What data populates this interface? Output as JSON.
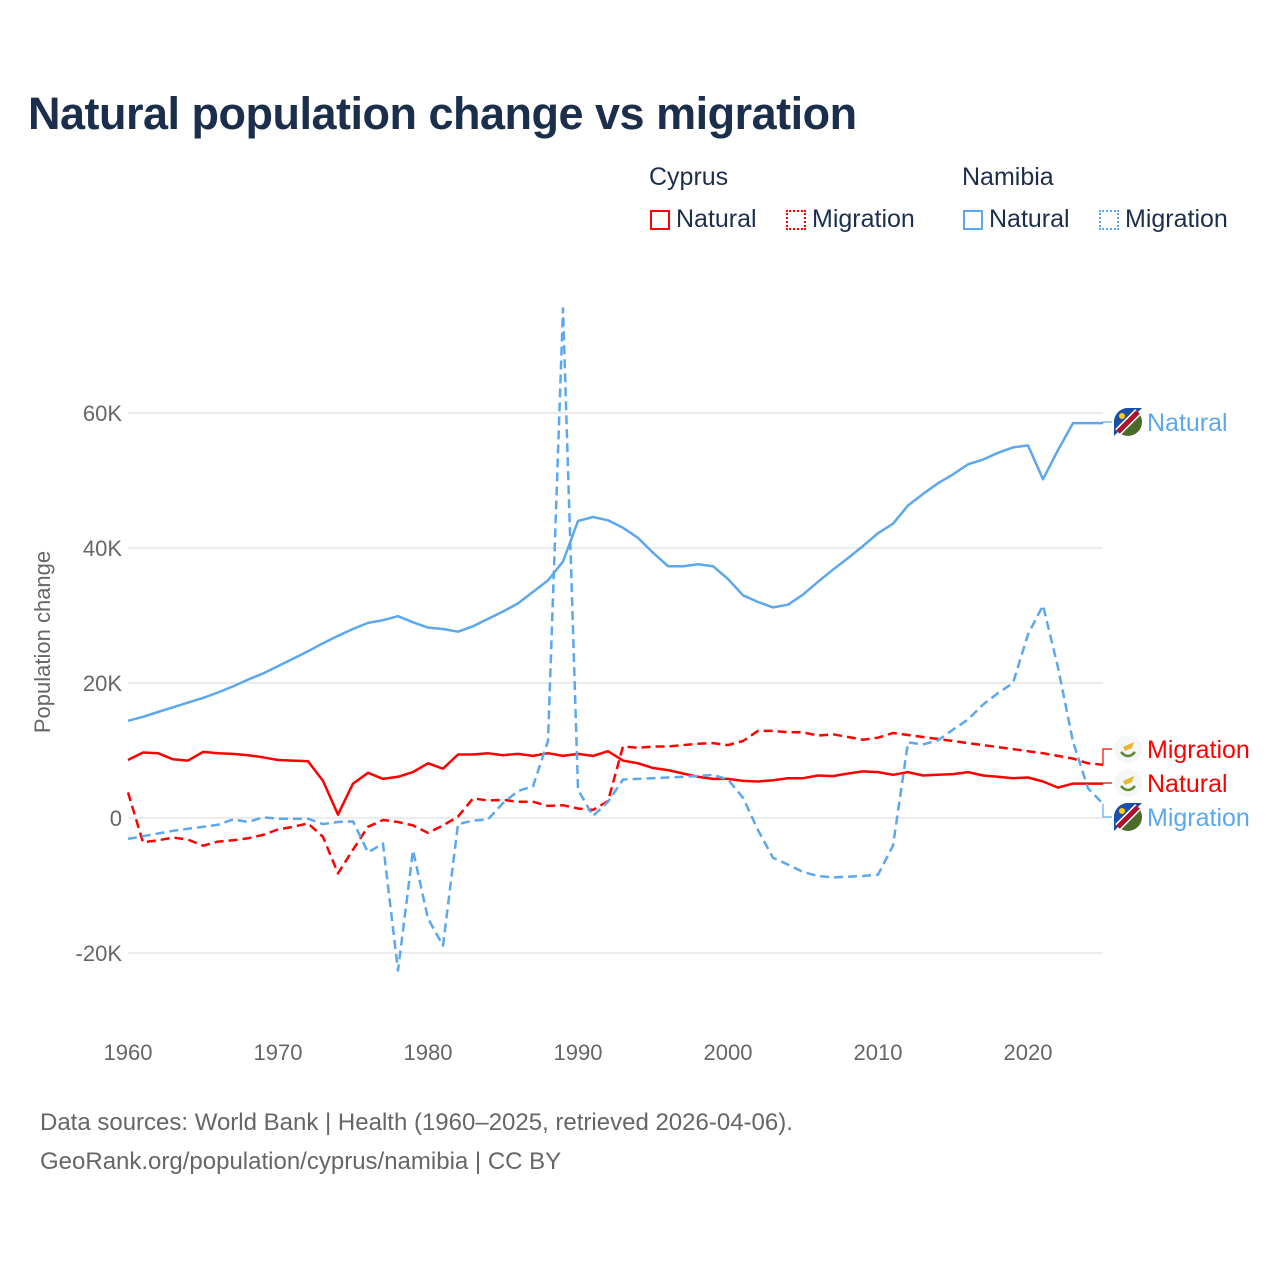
{
  "title": "Natural population change vs migration",
  "legend": {
    "groups": [
      {
        "name": "Cyprus",
        "items": [
          "Natural",
          "Migration"
        ]
      },
      {
        "name": "Namibia",
        "items": [
          "Natural",
          "Migration"
        ]
      }
    ]
  },
  "footer": {
    "line1": "Data sources: World Bank | Health (1960–2025, retrieved 2026-04-06).",
    "line2": "GeoRank.org/population/cyprus/namibia | CC BY"
  },
  "colors": {
    "cyprus": "#ff0000",
    "namibia": "#5ba8ee",
    "grid": "#e6e6e6"
  },
  "chart_data": {
    "type": "line",
    "title": "Natural population change vs migration",
    "xlabel": "",
    "ylabel": "Population change",
    "xlim": [
      1960,
      2025
    ],
    "ylim": [
      -28000,
      77000
    ],
    "xticks": [
      1960,
      1970,
      1980,
      1990,
      2000,
      2010,
      2020
    ],
    "xtick_labels": [
      "1960",
      "1970",
      "1980",
      "1990",
      "2000",
      "2010",
      "2020"
    ],
    "yticks": [
      -20000,
      0,
      20000,
      40000,
      60000
    ],
    "ytick_labels": [
      "-20K",
      "0",
      "20K",
      "40K",
      "60K"
    ],
    "grid": true,
    "legend_position": "top-right",
    "x_start": 1960,
    "series": [
      {
        "name": "Namibia Natural",
        "end_label": "Natural",
        "country": "namibia",
        "dashed": false,
        "values": [
          14400,
          15000,
          15700,
          16400,
          17100,
          17800,
          18600,
          19500,
          20500,
          21400,
          22500,
          23600,
          24700,
          25900,
          27000,
          28000,
          28900,
          29300,
          29900,
          29000,
          28200,
          28000,
          27600,
          28400,
          29500,
          30600,
          31800,
          33500,
          35200,
          38000,
          44000,
          44600,
          44100,
          43000,
          41500,
          39300,
          37300,
          37300,
          37600,
          37300,
          35400,
          33000,
          32000,
          31200,
          31600,
          33100,
          35000,
          36800,
          38500,
          40300,
          42200,
          43600,
          46300,
          48000,
          49600,
          50900,
          52400,
          53100,
          54100,
          54900,
          55200,
          50200,
          54500,
          58500,
          58500,
          58500
        ]
      },
      {
        "name": "Cyprus Migration",
        "end_label": "Migration",
        "country": "cyprus",
        "dashed": true,
        "values": [
          3800,
          -3600,
          -3300,
          -2900,
          -3200,
          -4100,
          -3500,
          -3300,
          -3000,
          -2500,
          -1700,
          -1300,
          -800,
          -2800,
          -8200,
          -4700,
          -1300,
          -300,
          -600,
          -1100,
          -2200,
          -1100,
          200,
          2900,
          2600,
          2700,
          2400,
          2400,
          1800,
          1900,
          1400,
          1200,
          2500,
          10600,
          10400,
          10600,
          10600,
          10800,
          11000,
          11100,
          10800,
          11400,
          12900,
          12900,
          12700,
          12700,
          12200,
          12400,
          12000,
          11600,
          11900,
          12600,
          12300,
          12000,
          11700,
          11400,
          11100,
          10800,
          10500,
          10200,
          9900,
          9600,
          9200,
          8800,
          8100,
          7900
        ]
      },
      {
        "name": "Cyprus Natural",
        "end_label": "Natural",
        "country": "cyprus",
        "dashed": false,
        "values": [
          8600,
          9700,
          9600,
          8700,
          8500,
          9800,
          9600,
          9500,
          9300,
          9000,
          8600,
          8500,
          8400,
          5500,
          500,
          5100,
          6700,
          5800,
          6100,
          6800,
          8100,
          7300,
          9400,
          9400,
          9600,
          9300,
          9500,
          9200,
          9600,
          9200,
          9500,
          9200,
          9900,
          8500,
          8100,
          7400,
          7100,
          6600,
          6100,
          5800,
          5800,
          5500,
          5400,
          5600,
          5900,
          5900,
          6300,
          6200,
          6600,
          6900,
          6800,
          6400,
          6800,
          6300,
          6400,
          6500,
          6800,
          6300,
          6100,
          5900,
          6000,
          5400,
          4500,
          5100,
          5100,
          5100
        ]
      },
      {
        "name": "Namibia Migration",
        "end_label": "Migration",
        "country": "namibia",
        "dashed": true,
        "values": [
          -3100,
          -2700,
          -2300,
          -1900,
          -1600,
          -1300,
          -1000,
          -200,
          -600,
          100,
          -100,
          -100,
          -100,
          -900,
          -600,
          -500,
          -5100,
          -3800,
          -22600,
          -4800,
          -14900,
          -18900,
          -900,
          -400,
          -200,
          2200,
          4000,
          4700,
          11400,
          75500,
          4200,
          300,
          2400,
          5700,
          5800,
          5900,
          6000,
          6100,
          6200,
          6400,
          5700,
          3000,
          -1800,
          -5900,
          -6900,
          -8000,
          -8600,
          -8800,
          -8700,
          -8600,
          -8400,
          -4100,
          11200,
          10900,
          11500,
          13100,
          14600,
          16800,
          18500,
          20000,
          27200,
          31500,
          22300,
          11300,
          4400,
          2100
        ]
      }
    ]
  }
}
